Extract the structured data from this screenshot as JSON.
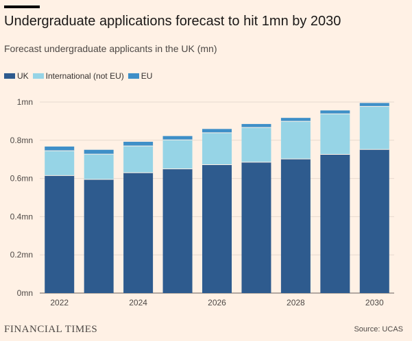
{
  "header": {
    "title": "Undergraduate applications forecast to hit 1mn by 2030",
    "subtitle": "Forecast undergraduate applicants in the UK (mn)"
  },
  "legend": [
    {
      "label": "UK",
      "color": "#2e5b8e"
    },
    {
      "label": "International (not EU)",
      "color": "#96d4e6"
    },
    {
      "label": "EU",
      "color": "#3e8fc8"
    }
  ],
  "footer": {
    "logo": "FINANCIAL TIMES",
    "source": "Source: UCAS"
  },
  "chart_data": {
    "type": "bar",
    "stacked": true,
    "categories": [
      "2022",
      "2023",
      "2024",
      "2025",
      "2026",
      "2027",
      "2028",
      "2029",
      "2030"
    ],
    "x_tick_labels": [
      "2022",
      "",
      "2024",
      "",
      "2026",
      "",
      "2028",
      "",
      "2030"
    ],
    "series": [
      {
        "name": "UK",
        "color": "#2e5b8e",
        "values": [
          0.615,
          0.595,
          0.63,
          0.65,
          0.672,
          0.685,
          0.702,
          0.726,
          0.752
        ]
      },
      {
        "name": "International (not EU)",
        "color": "#96d4e6",
        "values": [
          0.13,
          0.132,
          0.14,
          0.152,
          0.167,
          0.182,
          0.197,
          0.212,
          0.225
        ]
      },
      {
        "name": "EU",
        "color": "#3e8fc8",
        "values": [
          0.022,
          0.023,
          0.022,
          0.02,
          0.02,
          0.018,
          0.018,
          0.018,
          0.018
        ]
      }
    ],
    "ylim": [
      0,
      1
    ],
    "yticks": [
      0,
      0.2,
      0.4,
      0.6,
      0.8,
      1
    ],
    "ytick_labels": [
      "0mn",
      "0.2mn",
      "0.4mn",
      "0.6mn",
      "0.8mn",
      "1mn"
    ],
    "grid": true,
    "legend_position": "top-left"
  }
}
